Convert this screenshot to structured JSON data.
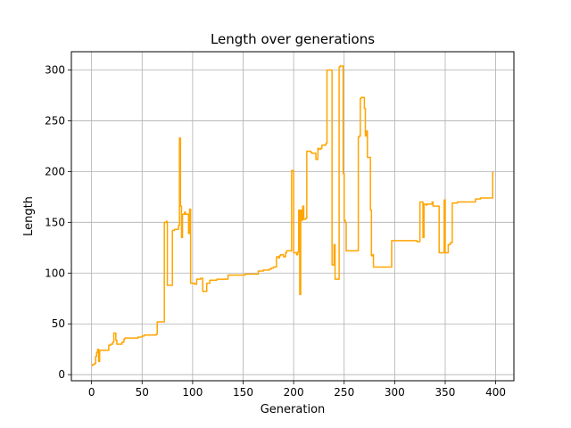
{
  "chart_data": {
    "type": "line",
    "title": "Length over generations",
    "xlabel": "Generation",
    "ylabel": "Length",
    "xlim": [
      -20,
      418
    ],
    "ylim": [
      -6,
      318
    ],
    "xticks": [
      0,
      50,
      100,
      150,
      200,
      250,
      300,
      350,
      400
    ],
    "yticks": [
      0,
      50,
      100,
      150,
      200,
      250,
      300
    ],
    "grid": true,
    "colors": {
      "line": "#ffa500",
      "grid": "#b0b0b0",
      "axes": "#000000"
    },
    "series": [
      {
        "step": true,
        "x": [
          0,
          1,
          3,
          4,
          5,
          6,
          7,
          8,
          10,
          17,
          19,
          21,
          22,
          24,
          25,
          30,
          32,
          33,
          44,
          46,
          50,
          52,
          63,
          64,
          65,
          70,
          71,
          72,
          74,
          75,
          77,
          80,
          81,
          82,
          84,
          86,
          87,
          88,
          89,
          90,
          92,
          93,
          94,
          96,
          97,
          98,
          100,
          101,
          102,
          104,
          108,
          110,
          112,
          114,
          116,
          117,
          124,
          127,
          135,
          150,
          152,
          165,
          168,
          170,
          176,
          178,
          180,
          183,
          185,
          186,
          187,
          190,
          192,
          193,
          196,
          198,
          200,
          202,
          203,
          204,
          205,
          206,
          207,
          208,
          209,
          210,
          212,
          213,
          217,
          218,
          220,
          222,
          224,
          225,
          227,
          228,
          232,
          233,
          235,
          236,
          238,
          240,
          241,
          242,
          245,
          246,
          248,
          249,
          250,
          251,
          252,
          262,
          264,
          265,
          266,
          267,
          269,
          270,
          271,
          272,
          273,
          275,
          276,
          277,
          278,
          279,
          282,
          287,
          297,
          307,
          322,
          325,
          327,
          328,
          329,
          330,
          331,
          332,
          335,
          337,
          338,
          342,
          343,
          344,
          349,
          350,
          351,
          353,
          355,
          357,
          362,
          364,
          370,
          380,
          385,
          390,
          397,
          398
        ],
        "y": [
          9,
          10,
          11,
          18,
          22,
          25,
          13,
          24,
          24,
          29,
          30,
          32,
          41,
          34,
          30,
          32,
          35,
          36,
          36,
          37,
          38,
          39,
          39,
          40,
          52,
          52,
          52,
          150,
          151,
          88,
          88,
          142,
          142,
          143,
          143,
          147,
          233,
          166,
          135,
          158,
          160,
          158,
          158,
          139,
          163,
          90,
          90,
          90,
          89,
          94,
          95,
          82,
          82,
          90,
          90,
          93,
          94,
          94,
          98,
          98,
          99,
          102,
          102,
          103,
          104,
          105,
          106,
          116,
          115,
          117,
          118,
          116,
          120,
          122,
          122,
          201,
          120,
          120,
          118,
          121,
          162,
          79,
          162,
          152,
          166,
          153,
          154,
          220,
          219,
          218,
          218,
          212,
          223,
          222,
          223,
          226,
          228,
          300,
          300,
          300,
          108,
          128,
          94,
          94,
          303,
          304,
          304,
          198,
          152,
          150,
          122,
          122,
          234,
          235,
          272,
          273,
          273,
          262,
          235,
          240,
          214,
          214,
          162,
          117,
          118,
          106,
          106,
          106,
          132,
          132,
          131,
          170,
          170,
          135,
          168,
          168,
          167,
          168,
          168,
          170,
          166,
          166,
          166,
          120,
          172,
          120,
          120,
          128,
          130,
          169,
          170,
          170,
          170,
          173,
          174,
          174,
          199,
          199
        ]
      }
    ]
  }
}
